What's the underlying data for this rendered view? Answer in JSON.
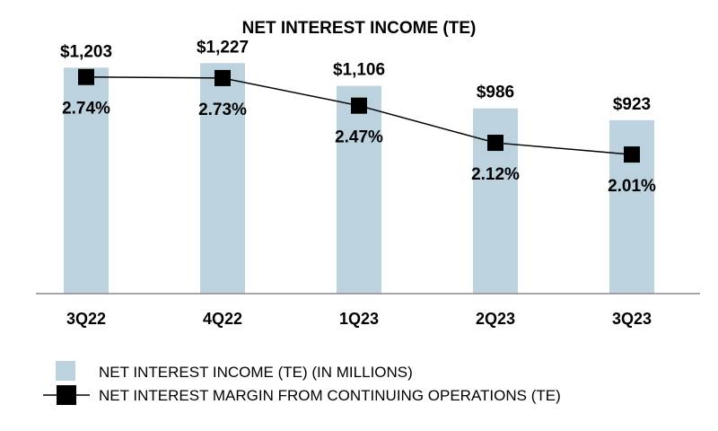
{
  "chart_data": {
    "type": "bar",
    "title": "NET INTEREST INCOME (TE)",
    "categories": [
      "3Q22",
      "4Q22",
      "1Q23",
      "2Q23",
      "3Q23"
    ],
    "series": [
      {
        "name": "NET INTEREST INCOME (TE) (IN MILLIONS)",
        "type": "bar",
        "values": [
          1203,
          1227,
          1106,
          986,
          923
        ],
        "labels": [
          "$1,203",
          "$1,227",
          "$1,106",
          "$986",
          "$923"
        ],
        "color": "#bcd3df"
      },
      {
        "name": "NET INTEREST MARGIN FROM CONTINUING OPERATIONS (TE)",
        "type": "line",
        "values": [
          2.74,
          2.73,
          2.47,
          2.12,
          2.01
        ],
        "labels": [
          "2.74%",
          "2.73%",
          "2.47%",
          "2.12%",
          "2.01%"
        ],
        "color": "#000000"
      }
    ],
    "bar_ylim": [
      0,
      1300
    ],
    "line_ylim": [
      0.7,
      3.0
    ],
    "xlabel": "",
    "ylabel": "",
    "grid": false,
    "legend_position": "bottom-left"
  }
}
